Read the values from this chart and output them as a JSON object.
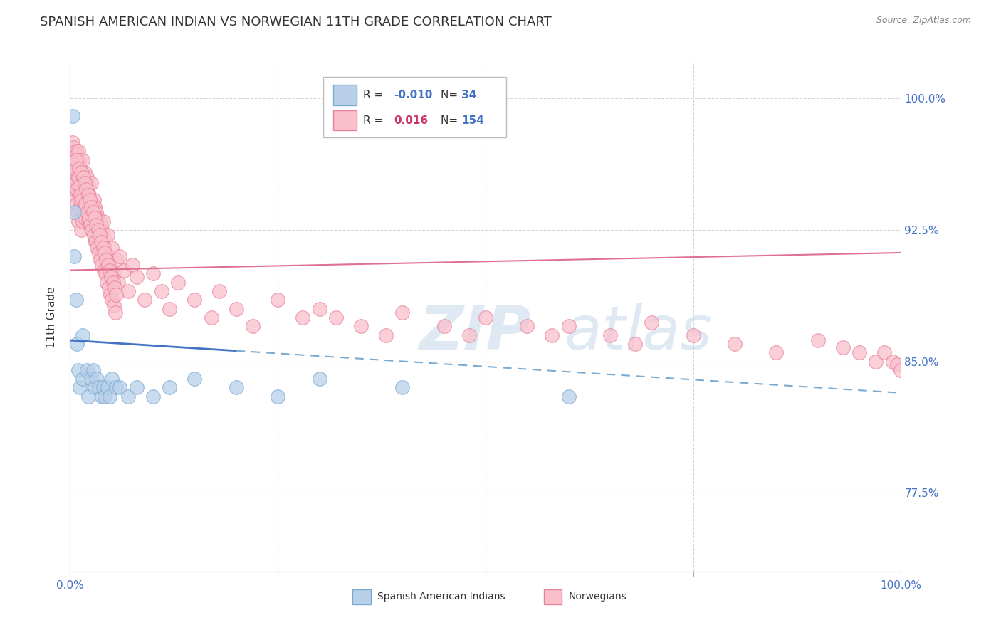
{
  "title": "SPANISH AMERICAN INDIAN VS NORWEGIAN 11TH GRADE CORRELATION CHART",
  "source_text": "Source: ZipAtlas.com",
  "ylabel": "11th Grade",
  "xlim": [
    0.0,
    100.0
  ],
  "ylim": [
    73.0,
    102.0
  ],
  "yticks": [
    77.5,
    85.0,
    92.5,
    100.0
  ],
  "ytick_labels": [
    "77.5%",
    "85.0%",
    "92.5%",
    "100.0%"
  ],
  "series1": {
    "name": "Spanish American Indians",
    "color": "#b8d0ea",
    "edge_color": "#7aaad0",
    "R": -0.01,
    "N": 34,
    "line_color": "#4472c4",
    "line_color_dashed": "#7aaad0",
    "x": [
      0.3,
      0.5,
      0.5,
      0.7,
      0.8,
      1.0,
      1.2,
      1.5,
      1.5,
      2.0,
      2.2,
      2.5,
      2.8,
      3.0,
      3.2,
      3.5,
      3.8,
      4.0,
      4.2,
      4.5,
      4.8,
      5.0,
      5.5,
      6.0,
      7.0,
      8.0,
      10.0,
      12.0,
      15.0,
      20.0,
      25.0,
      30.0,
      40.0,
      60.0
    ],
    "y": [
      99.0,
      93.5,
      91.0,
      88.5,
      86.0,
      84.5,
      83.5,
      84.0,
      86.5,
      84.5,
      83.0,
      84.0,
      84.5,
      83.5,
      84.0,
      83.5,
      83.0,
      83.5,
      83.0,
      83.5,
      83.0,
      84.0,
      83.5,
      83.5,
      83.0,
      83.5,
      83.0,
      83.5,
      84.0,
      83.5,
      83.0,
      84.0,
      83.5,
      83.0
    ]
  },
  "series2": {
    "name": "Norwegians",
    "color": "#f9c0cc",
    "edge_color": "#e8809a",
    "R": 0.016,
    "N": 154,
    "line_color": "#e07090",
    "x": [
      0.2,
      0.3,
      0.3,
      0.4,
      0.5,
      0.5,
      0.5,
      0.6,
      0.6,
      0.7,
      0.7,
      0.8,
      0.8,
      0.9,
      0.9,
      1.0,
      1.0,
      1.0,
      1.1,
      1.1,
      1.2,
      1.2,
      1.3,
      1.3,
      1.4,
      1.5,
      1.5,
      1.5,
      1.6,
      1.7,
      1.8,
      1.8,
      1.9,
      2.0,
      2.0,
      2.1,
      2.2,
      2.2,
      2.3,
      2.4,
      2.5,
      2.5,
      2.6,
      2.7,
      2.8,
      2.9,
      3.0,
      3.0,
      3.1,
      3.2,
      3.3,
      3.4,
      3.5,
      3.6,
      3.7,
      3.8,
      3.9,
      4.0,
      4.1,
      4.2,
      4.3,
      4.5,
      4.7,
      4.8,
      5.0,
      5.2,
      5.5,
      5.8,
      6.0,
      6.5,
      7.0,
      7.5,
      8.0,
      9.0,
      10.0,
      11.0,
      12.0,
      13.0,
      15.0,
      17.0,
      18.0,
      20.0,
      22.0,
      25.0,
      28.0,
      30.0,
      32.0,
      35.0,
      38.0,
      40.0,
      45.0,
      48.0,
      50.0,
      55.0,
      58.0,
      60.0,
      65.0,
      68.0,
      70.0,
      75.0,
      80.0,
      85.0,
      90.0,
      93.0,
      95.0,
      97.0,
      98.0,
      99.0,
      99.5,
      100.0,
      0.25,
      0.35,
      0.45,
      0.55,
      0.65,
      0.75,
      0.85,
      0.95,
      1.05,
      1.15,
      1.25,
      1.35,
      1.45,
      1.55,
      1.65,
      1.75,
      1.85,
      1.95,
      2.05,
      2.15,
      2.25,
      2.35,
      2.45,
      2.55,
      2.65,
      2.75,
      2.85,
      2.95,
      3.05,
      3.15,
      3.25,
      3.35,
      3.45,
      3.55,
      3.65,
      3.75,
      3.85,
      3.95,
      4.05,
      4.15,
      4.25,
      4.35,
      4.45,
      4.55,
      4.65,
      4.75,
      4.85,
      4.95,
      5.05,
      5.15,
      5.25,
      5.35,
      5.45,
      5.55
    ],
    "y": [
      96.5,
      97.5,
      95.0,
      96.8,
      97.2,
      95.8,
      94.5,
      96.5,
      94.8,
      97.0,
      95.2,
      96.8,
      94.0,
      95.5,
      93.5,
      97.0,
      95.0,
      93.0,
      96.5,
      94.5,
      96.0,
      93.8,
      95.8,
      92.5,
      95.0,
      96.5,
      94.8,
      93.0,
      95.5,
      94.5,
      95.8,
      93.2,
      94.0,
      95.5,
      93.5,
      94.8,
      95.0,
      93.0,
      94.5,
      92.8,
      95.2,
      93.8,
      94.0,
      93.5,
      92.5,
      94.2,
      93.8,
      92.0,
      93.5,
      92.8,
      93.2,
      91.5,
      92.5,
      93.0,
      91.8,
      92.5,
      91.2,
      93.0,
      92.0,
      91.5,
      90.8,
      92.2,
      91.0,
      90.5,
      91.5,
      90.0,
      90.8,
      89.5,
      91.0,
      90.2,
      89.0,
      90.5,
      89.8,
      88.5,
      90.0,
      89.0,
      88.0,
      89.5,
      88.5,
      87.5,
      89.0,
      88.0,
      87.0,
      88.5,
      87.5,
      88.0,
      87.5,
      87.0,
      86.5,
      87.8,
      87.0,
      86.5,
      87.5,
      87.0,
      86.5,
      87.0,
      86.5,
      86.0,
      87.2,
      86.5,
      86.0,
      85.5,
      86.2,
      85.8,
      85.5,
      85.0,
      85.5,
      85.0,
      84.8,
      84.5,
      95.8,
      96.2,
      95.5,
      96.0,
      95.2,
      96.5,
      94.8,
      95.5,
      96.0,
      95.0,
      94.5,
      95.8,
      94.2,
      95.5,
      93.8,
      95.2,
      94.0,
      94.8,
      93.5,
      94.5,
      93.2,
      94.2,
      92.8,
      93.8,
      92.5,
      93.5,
      92.2,
      93.2,
      91.8,
      92.8,
      91.5,
      92.5,
      91.2,
      92.2,
      90.8,
      91.8,
      90.5,
      91.5,
      90.2,
      91.2,
      90.0,
      90.8,
      89.5,
      90.5,
      89.2,
      90.2,
      88.8,
      89.8,
      88.5,
      89.5,
      88.2,
      89.2,
      87.8,
      88.8
    ]
  },
  "watermark_zip": "ZIP",
  "watermark_atlas": "atlas",
  "background_color": "#ffffff",
  "grid_color": "#cccccc",
  "legend_R_color_blue": "#4472c4",
  "legend_R_color_pink": "#cc3366",
  "legend_N_color": "#4472c4",
  "tick_color": "#4472c4"
}
